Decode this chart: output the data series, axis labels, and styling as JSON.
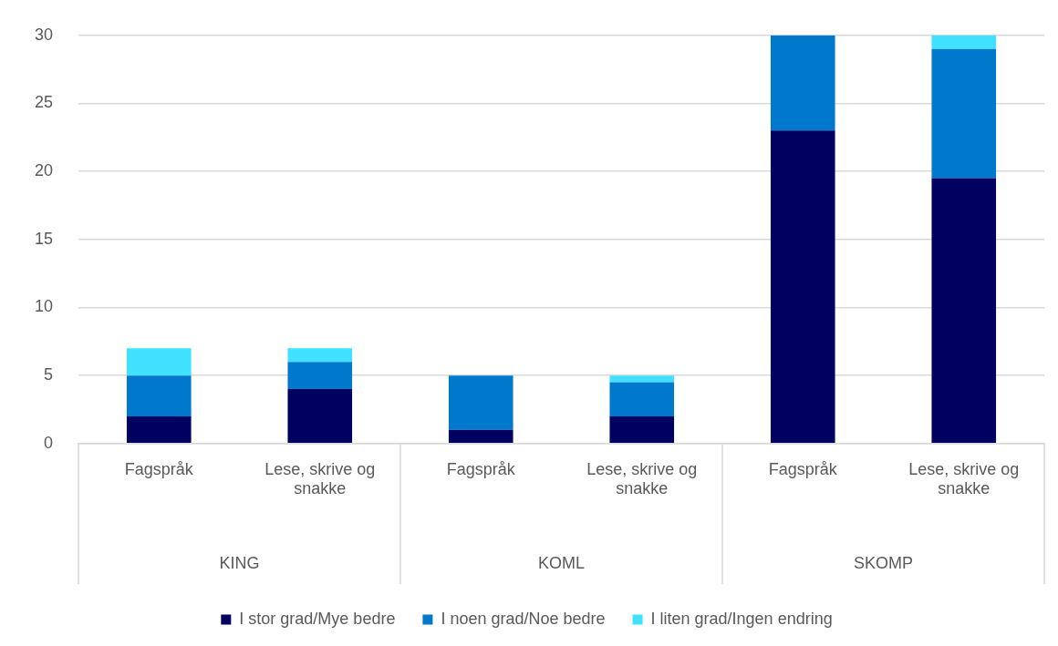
{
  "chart_data": {
    "type": "bar",
    "stacked": true,
    "categories": [
      "Fagspråk",
      "Lese, skrive og snakke",
      "Fagspråk",
      "Lese, skrive og snakke",
      "Fagspråk",
      "Lese, skrive og snakke"
    ],
    "series": [
      {
        "name": "I stor grad/Mye bedre",
        "color": "#000060",
        "values": [
          2,
          4,
          1,
          2,
          23,
          19.5
        ]
      },
      {
        "name": "I noen grad/Noe bedre",
        "color": "#0079cc",
        "values": [
          3,
          2,
          4,
          2.5,
          7,
          9.5
        ]
      },
      {
        "name": "I liten grad/Ingen endring",
        "color": "#40e0ff",
        "values": [
          2,
          1,
          0,
          0.5,
          0,
          1
        ]
      }
    ],
    "ylim": [
      0,
      30
    ],
    "yticks": [
      0,
      5,
      10,
      15,
      20,
      25,
      30
    ],
    "grid": "y",
    "legend": "bottom",
    "annotations": [
      "KING",
      "KOML",
      "SKOMP"
    ]
  }
}
